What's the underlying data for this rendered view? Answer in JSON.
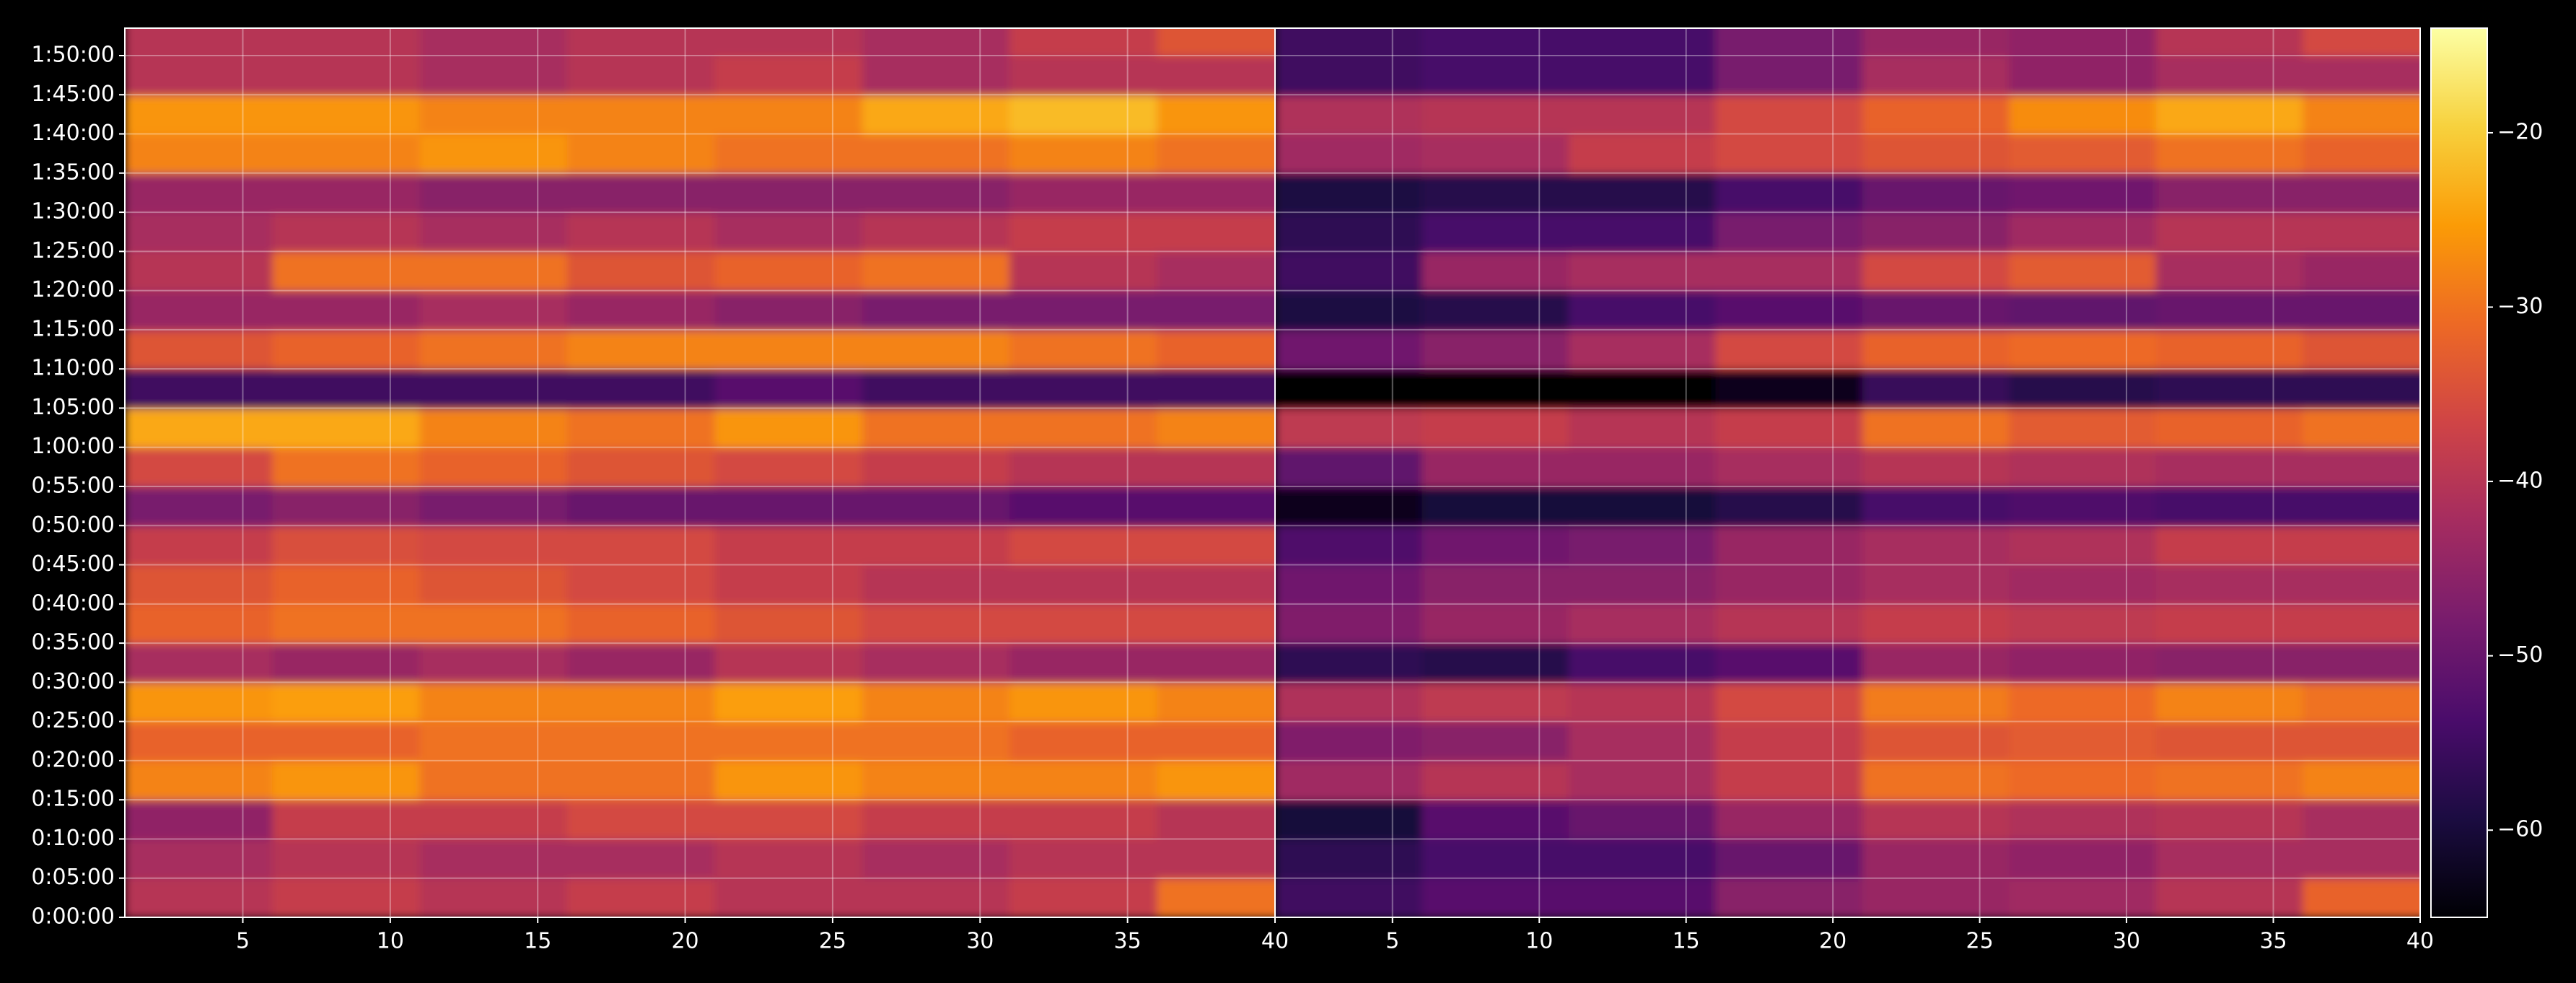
{
  "chart_data": [
    {
      "type": "heatmap",
      "x": [
        3.5,
        8.5,
        13.5,
        18.5,
        23.5,
        28.5,
        33.5,
        38.5
      ],
      "y": [
        2.5,
        7.5,
        12.5,
        17.5,
        22.5,
        27.5,
        32.5,
        37.5,
        42.5,
        47.5,
        52.5,
        57.5,
        62.5,
        67.5,
        72.5,
        77.5,
        82.5,
        87.5,
        92.5,
        97.5,
        102.5,
        107.5,
        112.5
      ],
      "z": [
        [
          -40,
          -38,
          -40,
          -38,
          -40,
          -40,
          -38,
          -30
        ],
        [
          -42,
          -40,
          -42,
          -42,
          -40,
          -42,
          -40,
          -40
        ],
        [
          -45,
          -38,
          -38,
          -36,
          -36,
          -38,
          -38,
          -40
        ],
        [
          -28,
          -26,
          -30,
          -30,
          -26,
          -28,
          -28,
          -26
        ],
        [
          -32,
          -32,
          -30,
          -30,
          -30,
          -30,
          -32,
          -32
        ],
        [
          -26,
          -25,
          -28,
          -28,
          -25,
          -28,
          -26,
          -28
        ],
        [
          -42,
          -44,
          -42,
          -44,
          -40,
          -42,
          -44,
          -44
        ],
        [
          -32,
          -30,
          -30,
          -32,
          -34,
          -36,
          -36,
          -36
        ],
        [
          -34,
          -32,
          -34,
          -36,
          -38,
          -40,
          -40,
          -40
        ],
        [
          -38,
          -35,
          -36,
          -36,
          -38,
          -38,
          -36,
          -36
        ],
        [
          -48,
          -46,
          -48,
          -50,
          -50,
          -50,
          -52,
          -52
        ],
        [
          -36,
          -30,
          -32,
          -34,
          -36,
          -38,
          -40,
          -40
        ],
        [
          -24,
          -24,
          -28,
          -30,
          -26,
          -30,
          -30,
          -28
        ],
        [
          -55,
          -55,
          -55,
          -55,
          -52,
          -55,
          -55,
          -55
        ],
        [
          -34,
          -32,
          -30,
          -28,
          -28,
          -28,
          -30,
          -32
        ],
        [
          -44,
          -44,
          -42,
          -44,
          -46,
          -48,
          -48,
          -48
        ],
        [
          -40,
          -30,
          -30,
          -34,
          -32,
          -30,
          -40,
          -42
        ],
        [
          -42,
          -40,
          -42,
          -40,
          -42,
          -40,
          -38,
          -38
        ],
        [
          -44,
          -44,
          -46,
          -46,
          -46,
          -46,
          -44,
          -44
        ],
        [
          -28,
          -28,
          -26,
          -28,
          -30,
          -30,
          -28,
          -30
        ],
        [
          -26,
          -26,
          -28,
          -28,
          -28,
          -24,
          -22,
          -26
        ],
        [
          -40,
          -40,
          -42,
          -40,
          -38,
          -42,
          -40,
          -40
        ],
        [
          -40,
          -40,
          -42,
          -40,
          -40,
          -42,
          -38,
          -34
        ]
      ],
      "xlim": [
        1,
        40
      ],
      "ylim": [
        0,
        113.5
      ],
      "xticks": [
        5,
        10,
        15,
        20,
        25,
        30,
        35,
        40
      ],
      "yticks": [
        {
          "value": 0,
          "label": "0:00:00"
        },
        {
          "value": 5,
          "label": "0:05:00"
        },
        {
          "value": 10,
          "label": "0:10:00"
        },
        {
          "value": 15,
          "label": "0:15:00"
        },
        {
          "value": 20,
          "label": "0:20:00"
        },
        {
          "value": 25,
          "label": "0:25:00"
        },
        {
          "value": 30,
          "label": "0:30:00"
        },
        {
          "value": 35,
          "label": "0:35:00"
        },
        {
          "value": 40,
          "label": "0:40:00"
        },
        {
          "value": 45,
          "label": "0:45:00"
        },
        {
          "value": 50,
          "label": "0:50:00"
        },
        {
          "value": 55,
          "label": "0:55:00"
        },
        {
          "value": 60,
          "label": "1:00:00"
        },
        {
          "value": 65,
          "label": "1:05:00"
        },
        {
          "value": 70,
          "label": "1:10:00"
        },
        {
          "value": 75,
          "label": "1:15:00"
        },
        {
          "value": 80,
          "label": "1:20:00"
        },
        {
          "value": 85,
          "label": "1:25:00"
        },
        {
          "value": 90,
          "label": "1:30:00"
        },
        {
          "value": 95,
          "label": "1:35:00"
        },
        {
          "value": 100,
          "label": "1:40:00"
        },
        {
          "value": 105,
          "label": "1:45:00"
        },
        {
          "value": 110,
          "label": "1:50:00"
        }
      ],
      "grid": true
    },
    {
      "type": "heatmap",
      "x": [
        3.5,
        8.5,
        13.5,
        18.5,
        23.5,
        28.5,
        33.5,
        38.5
      ],
      "y": [
        2.5,
        7.5,
        12.5,
        17.5,
        22.5,
        27.5,
        32.5,
        37.5,
        42.5,
        47.5,
        52.5,
        57.5,
        62.5,
        67.5,
        72.5,
        77.5,
        82.5,
        87.5,
        92.5,
        97.5,
        102.5,
        107.5,
        112.5
      ],
      "z": [
        [
          -55,
          -52,
          -52,
          -46,
          -44,
          -43,
          -40,
          -32
        ],
        [
          -57,
          -54,
          -54,
          -50,
          -44,
          -45,
          -42,
          -42
        ],
        [
          -60,
          -52,
          -50,
          -44,
          -40,
          -41,
          -40,
          -42
        ],
        [
          -43,
          -40,
          -42,
          -38,
          -30,
          -31,
          -30,
          -28
        ],
        [
          -47,
          -46,
          -42,
          -38,
          -34,
          -33,
          -34,
          -34
        ],
        [
          -41,
          -39,
          -40,
          -36,
          -29,
          -31,
          -28,
          -30
        ],
        [
          -57,
          -58,
          -54,
          -52,
          -44,
          -45,
          -46,
          -46
        ],
        [
          -47,
          -44,
          -42,
          -40,
          -38,
          -39,
          -38,
          -38
        ],
        [
          -49,
          -46,
          -46,
          -44,
          -42,
          -43,
          -42,
          -42
        ],
        [
          -53,
          -49,
          -48,
          -44,
          -42,
          -41,
          -38,
          -38
        ],
        [
          -63,
          -60,
          -60,
          -58,
          -54,
          -53,
          -54,
          -54
        ],
        [
          -51,
          -44,
          -44,
          -42,
          -40,
          -41,
          -42,
          -42
        ],
        [
          -39,
          -38,
          -40,
          -38,
          -30,
          -33,
          -32,
          -30
        ],
        [
          -65,
          -65,
          -65,
          -63,
          -56,
          -58,
          -57,
          -57
        ],
        [
          -49,
          -46,
          -42,
          -36,
          -32,
          -31,
          -32,
          -34
        ],
        [
          -59,
          -58,
          -54,
          -52,
          -50,
          -51,
          -50,
          -50
        ],
        [
          -55,
          -44,
          -42,
          -42,
          -36,
          -33,
          -42,
          -44
        ],
        [
          -57,
          -54,
          -54,
          -48,
          -46,
          -43,
          -40,
          -40
        ],
        [
          -59,
          -58,
          -58,
          -54,
          -50,
          -49,
          -46,
          -46
        ],
        [
          -43,
          -42,
          -38,
          -36,
          -34,
          -33,
          -30,
          -32
        ],
        [
          -41,
          -40,
          -40,
          -36,
          -32,
          -27,
          -24,
          -28
        ],
        [
          -55,
          -54,
          -54,
          -48,
          -42,
          -45,
          -42,
          -42
        ],
        [
          -55,
          -54,
          -54,
          -48,
          -44,
          -45,
          -40,
          -36
        ]
      ],
      "xlim": [
        1,
        40
      ],
      "ylim": [
        0,
        113.5
      ],
      "xticks": [
        5,
        10,
        15,
        20,
        25,
        30,
        35,
        40
      ],
      "grid": true
    }
  ],
  "colorbar": {
    "vlim": [
      -65,
      -14
    ],
    "ticks": [
      {
        "value": -20,
        "label": "−20"
      },
      {
        "value": -30,
        "label": "−30"
      },
      {
        "value": -40,
        "label": "−40"
      },
      {
        "value": -50,
        "label": "−50"
      },
      {
        "value": -60,
        "label": "−60"
      }
    ],
    "colorscale": [
      "#000004",
      "#1b0c41",
      "#4a0c6b",
      "#781c6d",
      "#a52c60",
      "#cf4446",
      "#ed6925",
      "#fb9b06",
      "#f7d13d",
      "#fcffa4"
    ]
  }
}
